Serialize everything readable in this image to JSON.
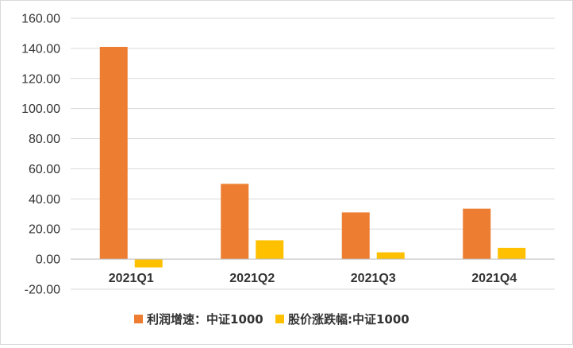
{
  "chart_data": {
    "type": "bar",
    "categories": [
      "2021Q1",
      "2021Q2",
      "2021Q3",
      "2021Q4"
    ],
    "series": [
      {
        "name": "利润增速：中证1000",
        "values": [
          141,
          50,
          31,
          33.5
        ],
        "color": "#ED7D31"
      },
      {
        "name": "股价涨跌幅:中证1000",
        "values": [
          -5.5,
          12.5,
          4.5,
          7.5
        ],
        "color": "#FFC000"
      }
    ],
    "ylim": [
      -20,
      160
    ],
    "yticks": [
      "-20.00",
      "0.00",
      "20.00",
      "40.00",
      "60.00",
      "80.00",
      "100.00",
      "120.00",
      "140.00",
      "160.00"
    ],
    "gridlines": true,
    "legend_position": "bottom",
    "gridline_color": "#d9d9d9",
    "axis_color": "#bfbfbf"
  }
}
